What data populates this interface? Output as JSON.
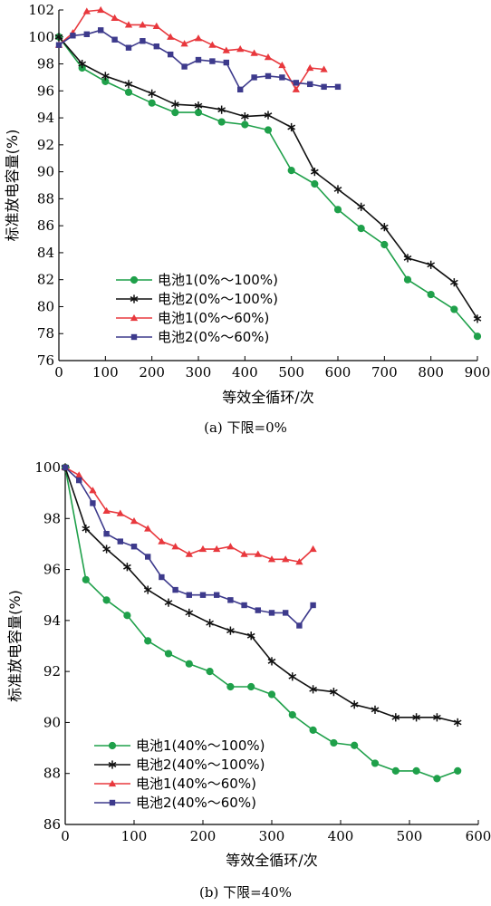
{
  "chart_data": [
    {
      "type": "line",
      "caption": "(a) 下限=0%",
      "xlabel": "等效全循环/次",
      "ylabel": "标准放电容量(%)",
      "xlim": [
        0,
        900
      ],
      "ylim": [
        76,
        102
      ],
      "xticks": [
        0,
        100,
        200,
        300,
        400,
        500,
        600,
        700,
        800,
        900
      ],
      "yticks": [
        76,
        78,
        80,
        82,
        84,
        86,
        88,
        90,
        92,
        94,
        96,
        98,
        100,
        102
      ],
      "grid": false,
      "legend_position": "bottom-left",
      "series": [
        {
          "name": "电池1(0%～100%)",
          "color": "#1fa04a",
          "marker": "circle",
          "x": [
            0,
            50,
            100,
            150,
            200,
            250,
            300,
            350,
            400,
            450,
            500,
            550,
            600,
            650,
            700,
            750,
            800,
            850,
            900
          ],
          "y": [
            100,
            97.7,
            96.7,
            95.9,
            95.1,
            94.4,
            94.4,
            93.7,
            93.5,
            93.1,
            90.1,
            89.1,
            87.2,
            85.8,
            84.6,
            82.0,
            80.9,
            79.8,
            77.8
          ]
        },
        {
          "name": "电池2(0%～100%)",
          "color": "#111111",
          "marker": "asterisk",
          "x": [
            0,
            50,
            100,
            150,
            200,
            250,
            300,
            350,
            400,
            450,
            500,
            550,
            600,
            650,
            700,
            750,
            800,
            850,
            900
          ],
          "y": [
            100,
            98.0,
            97.1,
            96.5,
            95.8,
            95.0,
            94.9,
            94.6,
            94.1,
            94.2,
            93.3,
            90.0,
            88.7,
            87.4,
            85.9,
            83.6,
            83.1,
            81.8,
            79.1
          ]
        },
        {
          "name": "电池1(0%～60%)",
          "color": "#e8383d",
          "marker": "triangle",
          "x": [
            0,
            30,
            60,
            90,
            120,
            150,
            180,
            210,
            240,
            270,
            300,
            330,
            360,
            390,
            420,
            450,
            480,
            510,
            540,
            570
          ],
          "y": [
            99.4,
            100.3,
            101.9,
            102.0,
            101.4,
            100.9,
            100.9,
            100.8,
            100.0,
            99.5,
            99.9,
            99.4,
            99.0,
            99.1,
            98.8,
            98.5,
            97.9,
            96.1,
            97.7,
            97.6
          ]
        },
        {
          "name": "电池2(0%～60%)",
          "color": "#3d3a8c",
          "marker": "square",
          "x": [
            0,
            30,
            60,
            90,
            120,
            150,
            180,
            210,
            240,
            270,
            300,
            330,
            360,
            390,
            420,
            450,
            480,
            510,
            540,
            570,
            600
          ],
          "y": [
            99.4,
            100.1,
            100.2,
            100.5,
            99.8,
            99.2,
            99.7,
            99.3,
            98.7,
            97.8,
            98.3,
            98.2,
            98.1,
            96.1,
            97.0,
            97.1,
            97.0,
            96.6,
            96.5,
            96.3,
            96.3
          ]
        }
      ]
    },
    {
      "type": "line",
      "caption": "(b) 下限=40%",
      "xlabel": "等效全循环/次",
      "ylabel": "标准放电容量(%)",
      "xlim": [
        0,
        600
      ],
      "ylim": [
        86,
        100
      ],
      "xticks": [
        0,
        100,
        200,
        300,
        400,
        500,
        600
      ],
      "yticks": [
        86,
        88,
        90,
        92,
        94,
        96,
        98,
        100
      ],
      "grid": false,
      "legend_position": "bottom-left",
      "series": [
        {
          "name": "电池1(40%～100%)",
          "color": "#1fa04a",
          "marker": "circle",
          "x": [
            0,
            30,
            60,
            90,
            120,
            150,
            180,
            210,
            240,
            270,
            300,
            330,
            360,
            390,
            420,
            450,
            480,
            510,
            540,
            570
          ],
          "y": [
            100,
            95.6,
            94.8,
            94.2,
            93.2,
            92.7,
            92.3,
            92.0,
            91.4,
            91.4,
            91.1,
            90.3,
            89.7,
            89.2,
            89.1,
            88.4,
            88.1,
            88.1,
            87.8,
            88.1
          ]
        },
        {
          "name": "电池2(40%～100%)",
          "color": "#111111",
          "marker": "asterisk",
          "x": [
            0,
            30,
            60,
            90,
            120,
            150,
            180,
            210,
            240,
            270,
            300,
            330,
            360,
            390,
            420,
            450,
            480,
            510,
            540,
            570
          ],
          "y": [
            100,
            97.6,
            96.8,
            96.1,
            95.2,
            94.7,
            94.3,
            93.9,
            93.6,
            93.4,
            92.4,
            91.8,
            91.3,
            91.2,
            90.7,
            90.5,
            90.2,
            90.2,
            90.2,
            90.0
          ]
        },
        {
          "name": "电池1(40%～60%)",
          "color": "#e8383d",
          "marker": "triangle",
          "x": [
            0,
            20,
            40,
            60,
            80,
            100,
            120,
            140,
            160,
            180,
            200,
            220,
            240,
            260,
            280,
            300,
            320,
            340,
            360
          ],
          "y": [
            100,
            99.7,
            99.1,
            98.3,
            98.2,
            97.9,
            97.6,
            97.1,
            96.9,
            96.6,
            96.8,
            96.8,
            96.9,
            96.6,
            96.6,
            96.4,
            96.4,
            96.3,
            96.8
          ]
        },
        {
          "name": "电池2(40%～60%)",
          "color": "#3d3a8c",
          "marker": "square",
          "x": [
            0,
            20,
            40,
            60,
            80,
            100,
            120,
            140,
            160,
            180,
            200,
            220,
            240,
            260,
            280,
            300,
            320,
            340,
            360
          ],
          "y": [
            100,
            99.5,
            98.6,
            97.4,
            97.1,
            96.9,
            96.5,
            95.7,
            95.2,
            95.0,
            95.0,
            95.0,
            94.8,
            94.6,
            94.4,
            94.3,
            94.3,
            93.8,
            94.6
          ]
        }
      ]
    }
  ]
}
